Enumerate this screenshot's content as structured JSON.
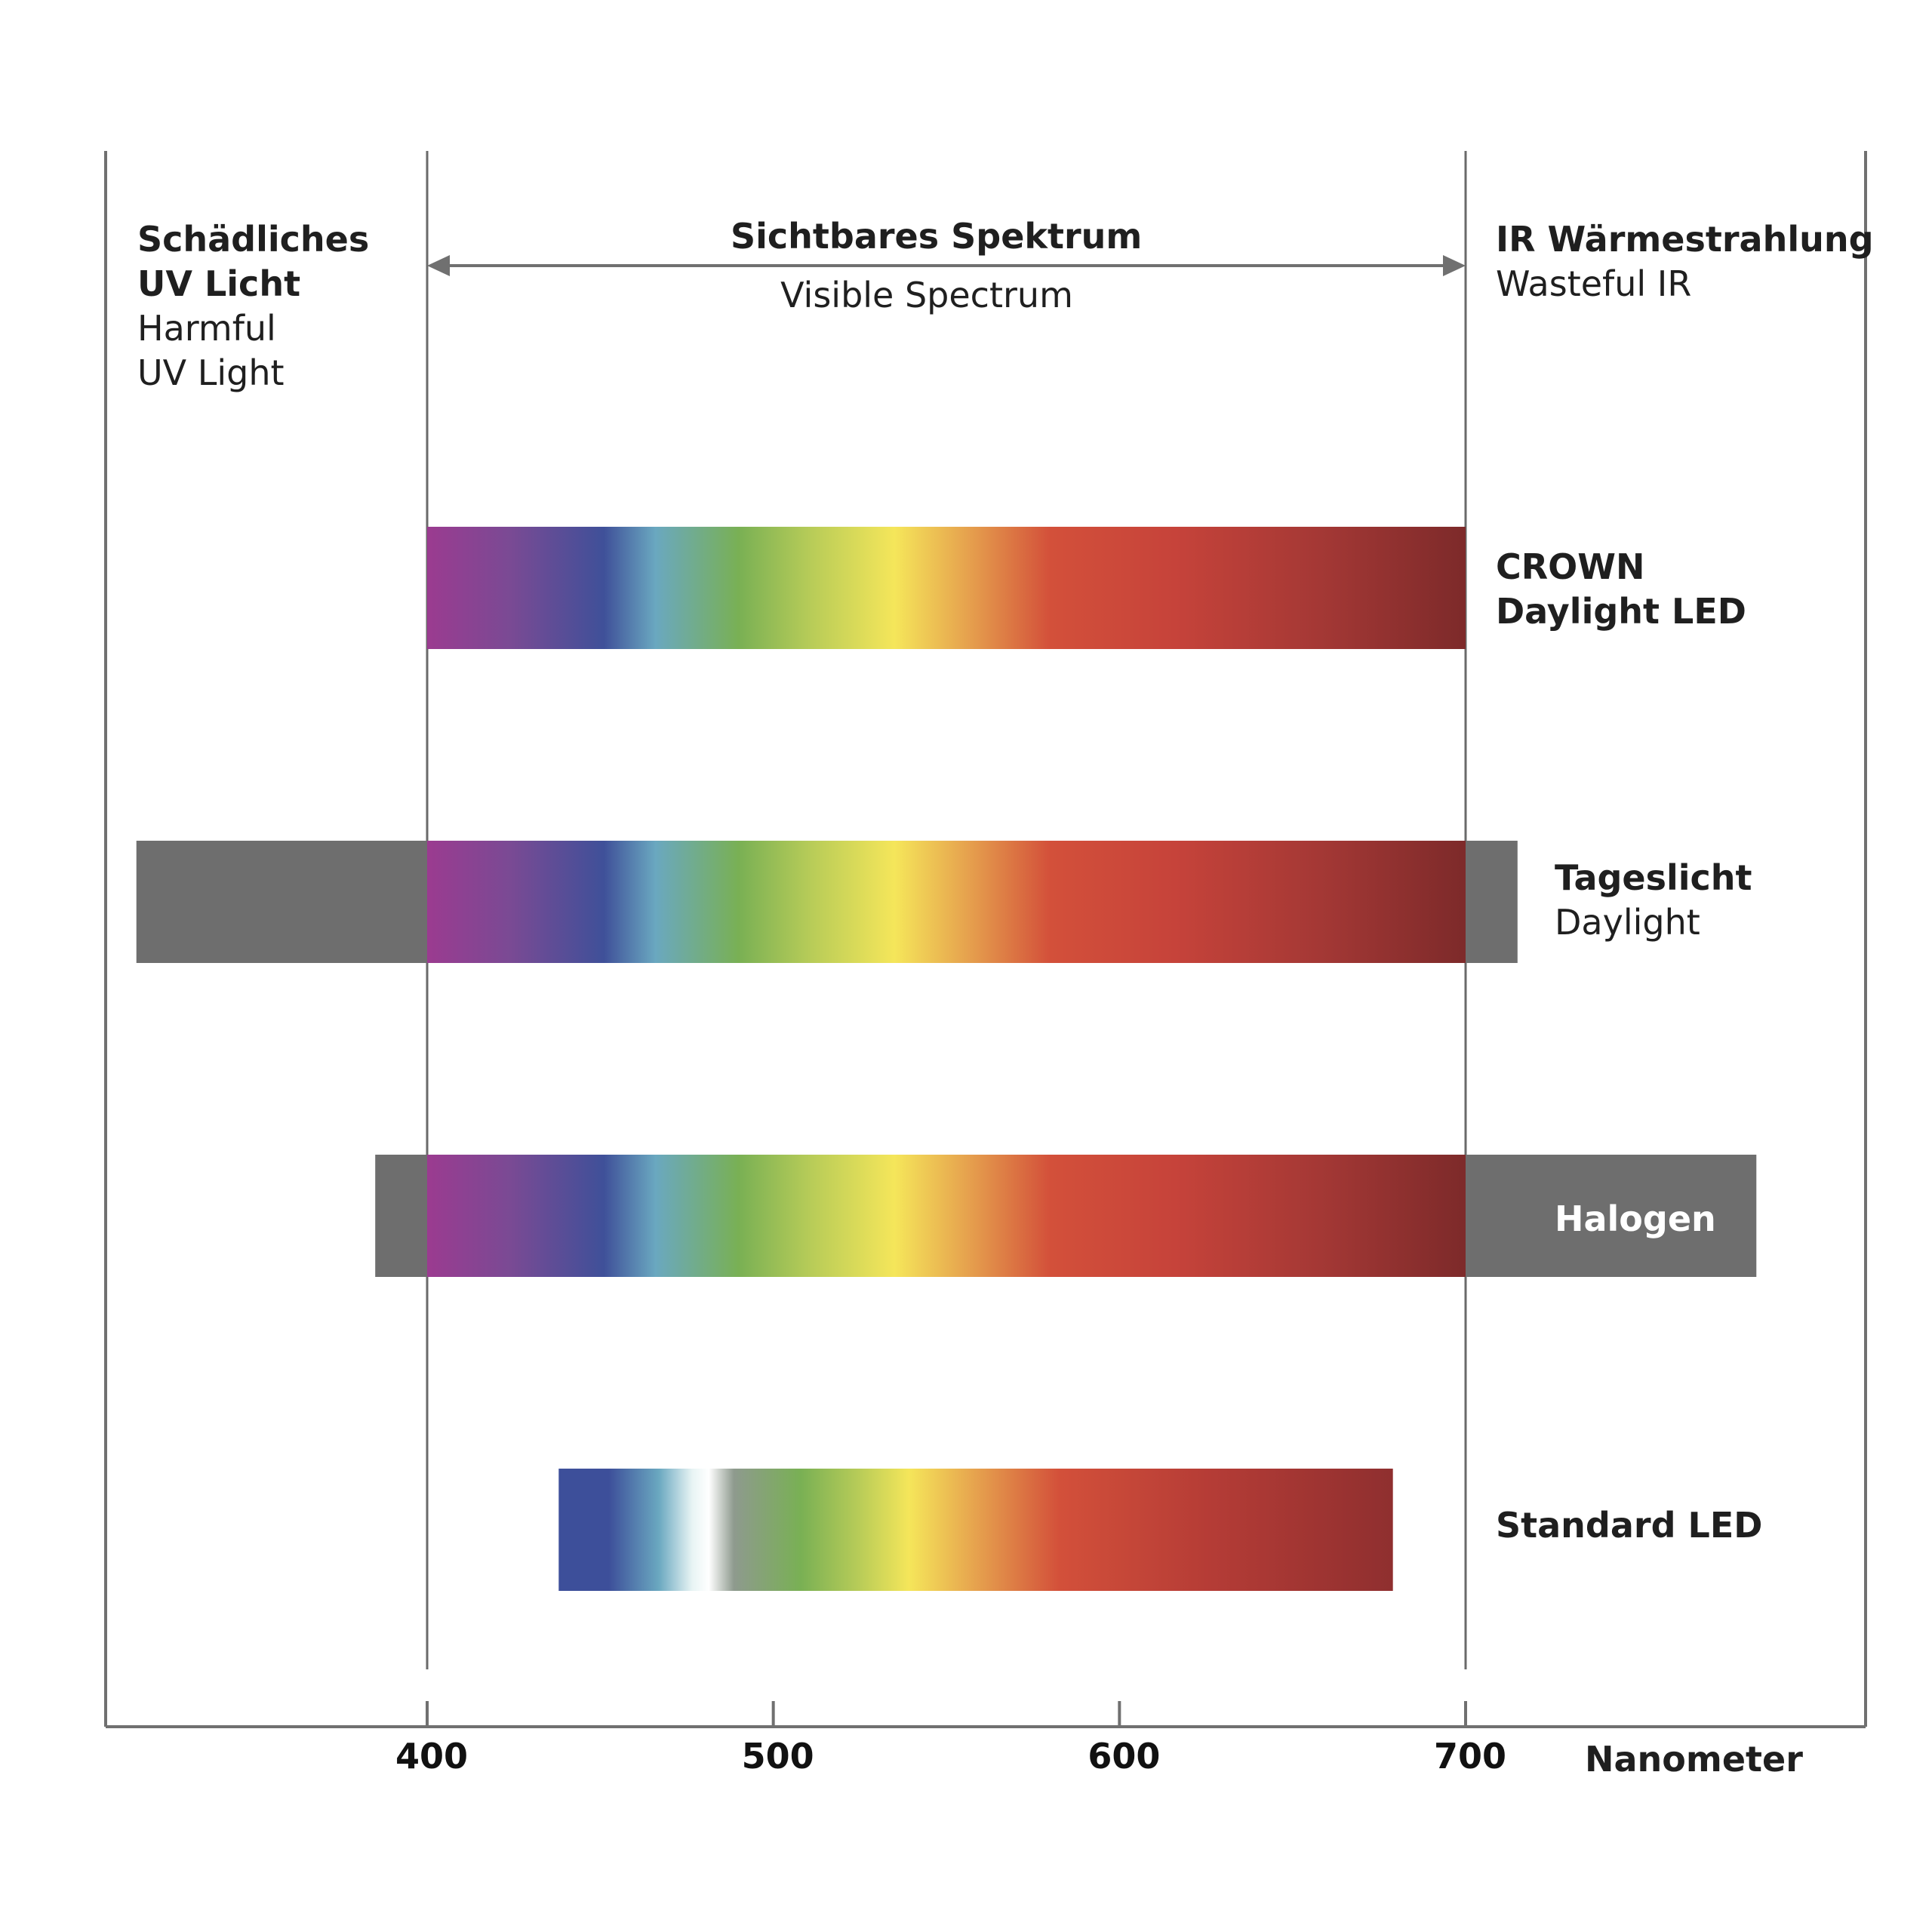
{
  "chart_data": {
    "type": "bar",
    "title": "Sichtbares Spektrum",
    "subtitle": "Visible Spectrum",
    "xlabel": "Nanometer",
    "x_ticks": [
      400,
      500,
      600,
      700
    ],
    "x_range": [
      307,
      816
    ],
    "visible_range": [
      400,
      700
    ],
    "regions": {
      "uv": {
        "title_de_line1": "Schädliches",
        "title_de_line2": "UV Licht",
        "title_en_line1": "Harmful",
        "title_en_line2": "UV Light"
      },
      "ir": {
        "title_de": "IR Wärmestrahlung",
        "title_en": "Wasteful IR"
      }
    },
    "series": [
      {
        "name": "CROWN Daylight LED",
        "label_line1": "CROWN",
        "label_line2": "Daylight LED",
        "visible_start": 400,
        "visible_end": 700,
        "spectrum": "full"
      },
      {
        "name": "Tageslicht",
        "label_line1": "Tageslicht",
        "label_line2": "Daylight",
        "visible_start": 400,
        "visible_end": 700,
        "spectrum": "full",
        "uv_from": 316,
        "ir_to": 715
      },
      {
        "name": "Halogen",
        "label_line1": "Halogen",
        "visible_start": 400,
        "visible_end": 700,
        "spectrum": "full",
        "uv_from": 385,
        "ir_to": 784
      },
      {
        "name": "Standard LED",
        "label_line1": "Standard LED",
        "visible_start": 438,
        "visible_end": 679,
        "spectrum": "led"
      }
    ]
  },
  "colors": {
    "grey_band": "#6e6e6e",
    "axis": "#707070",
    "arrow": "#707070",
    "spectrum_full": [
      "#9b3b90",
      "#6f4a93",
      "#3d4f9a",
      "#6aa8c0",
      "#79b054",
      "#b8cc58",
      "#f5e65a",
      "#e6a24e",
      "#d3503a",
      "#c9463a",
      "#aa3a35",
      "#7d2a2a"
    ],
    "spectrum_led": [
      "#3d4f9a",
      "#3d4f9a",
      "#e8f4f4",
      "#ffffff",
      "#8e9a8e",
      "#79b054",
      "#b8cc58",
      "#f5e65a",
      "#e6a24e",
      "#d3503a",
      "#c9463a",
      "#8f2f2f"
    ]
  }
}
